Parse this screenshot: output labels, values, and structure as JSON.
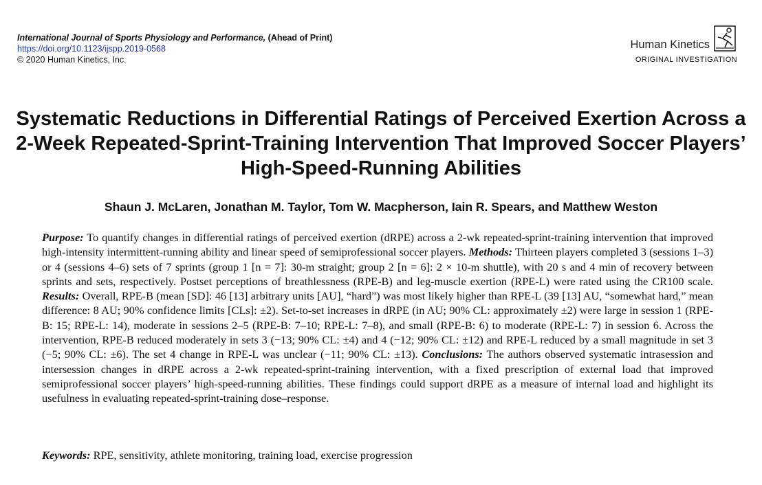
{
  "header": {
    "journal_name": "International Journal of Sports Physiology and Performance,",
    "ahead_of_print": " (Ahead of Print)",
    "doi": "https://doi.org/10.1123/ijspp.2019-0568",
    "copyright": "© 2020 Human Kinetics, Inc.",
    "publisher": "Human Kinetics",
    "publisher_logo_icon": "human-kinetics-runner-logo",
    "article_type": "ORIGINAL INVESTIGATION"
  },
  "article": {
    "title": "Systematic Reductions in Differential Ratings of Perceived Exertion Across a 2-Week Repeated-Sprint-Training Intervention That Improved Soccer Players’ High-Speed-Running Abilities",
    "authors": "Shaun J. McLaren, Jonathan M. Taylor, Tom W. Macpherson, Iain R. Spears, and Matthew Weston"
  },
  "abstract": {
    "purpose_label": "Purpose:",
    "purpose_text": " To quantify changes in differential ratings of perceived exertion (dRPE) across a 2-wk repeated-sprint-training intervention that improved high-intensity intermittent-running ability and linear speed of semiprofessional soccer players. ",
    "methods_label": "Methods:",
    "methods_text": " Thirteen players completed 3 (sessions 1–3) or 4 (sessions 4–6) sets of 7 sprints (group 1 [n = 7]: 30-m straight; group 2 [n = 6]: 2 × 10-m shuttle), with 20 s and 4 min of recovery between sprints and sets, respectively. Postset perceptions of breathlessness (RPE-B) and leg-muscle exertion (RPE-L) were rated using the CR100 scale. ",
    "results_label": "Results:",
    "results_text": " Overall, RPE-B (mean [SD]: 46 [13] arbitrary units [AU], “hard”) was most likely higher than RPE-L (39 [13] AU, “somewhat hard,” mean difference: 8 AU; 90% confidence limits [CLs]: ±2). Set-to-set increases in dRPE (in AU; 90% CL: approximately ±2) were large in session 1 (RPE-B: 15; RPE-L: 14), moderate in sessions 2–5 (RPE-B: 7–10; RPE-L: 7–8), and small (RPE-B: 6) to moderate (RPE-L: 7) in session 6. Across the intervention, RPE-B reduced moderately in sets 3 (−13; 90% CL: ±4) and 4 (−12; 90% CL: ±12) and RPE-L reduced by a small magnitude in set 3 (−5; 90% CL: ±6). The set 4 change in RPE-L was unclear (−11; 90% CL: ±13). ",
    "conclusions_label": "Conclusions:",
    "conclusions_text": " The authors observed systematic intrasession and intersession changes in dRPE across a 2-wk repeated-sprint-training intervention, with a fixed prescription of external load that improved semiprofessional soccer players’ high-speed-running abilities. These findings could support dRPE as a measure of internal load and highlight its usefulness in evaluating repeated-sprint-training dose–response."
  },
  "keywords": {
    "label": "Keywords:",
    "text": " RPE, sensitivity, athlete monitoring, training load, exercise progression"
  }
}
